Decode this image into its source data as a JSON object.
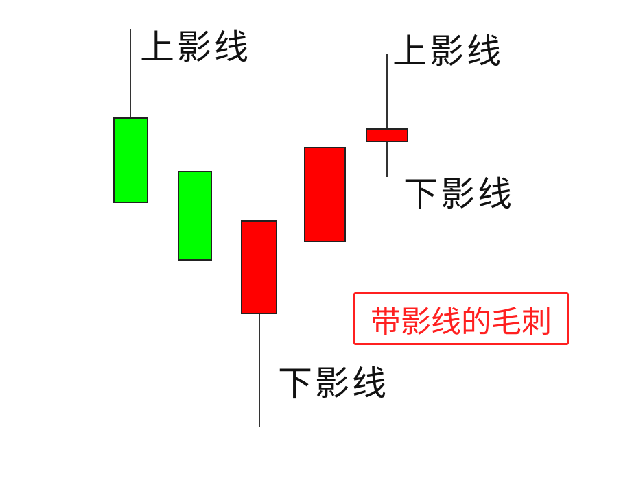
{
  "labels": {
    "upper_shadow_1": "上影线",
    "lower_shadow_1": "下影线",
    "upper_shadow_2": "上影线",
    "lower_shadow_2": "下影线"
  },
  "callout": "带影线的毛刺",
  "colors": {
    "bearish": "#00ff00",
    "bullish": "#ff0000",
    "callout": "#ff2020"
  },
  "candles": [
    {
      "color": "green",
      "upper_wick": true,
      "lower_wick": false
    },
    {
      "color": "green",
      "upper_wick": false,
      "lower_wick": false
    },
    {
      "color": "red",
      "upper_wick": false,
      "lower_wick": true
    },
    {
      "color": "red",
      "upper_wick": false,
      "lower_wick": false
    },
    {
      "color": "red",
      "upper_wick": true,
      "lower_wick": true
    }
  ]
}
